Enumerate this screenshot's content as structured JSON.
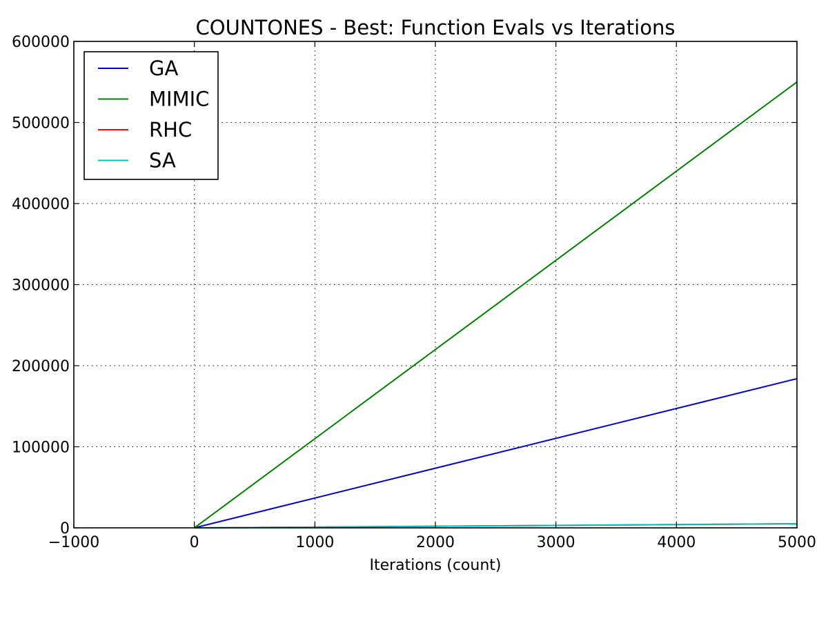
{
  "chart_data": {
    "type": "line",
    "title": "COUNTONES - Best: Function Evals vs Iterations",
    "xlabel": "Iterations (count)",
    "ylabel": "",
    "xlim": [
      -1000,
      5000
    ],
    "ylim": [
      0,
      600000
    ],
    "xticks": [
      -1000,
      0,
      1000,
      2000,
      3000,
      4000,
      5000
    ],
    "xtick_labels": [
      "−1000",
      "0",
      "1000",
      "2000",
      "3000",
      "4000",
      "5000"
    ],
    "yticks": [
      0,
      100000,
      200000,
      300000,
      400000,
      500000,
      600000
    ],
    "ytick_labels": [
      "0",
      "100000",
      "200000",
      "300000",
      "400000",
      "500000",
      "600000"
    ],
    "grid": true,
    "legend_position": "top-left",
    "series": [
      {
        "name": "GA",
        "color": "#0000cc",
        "x": [
          0,
          5000
        ],
        "values": [
          0,
          184000
        ]
      },
      {
        "name": "MIMIC",
        "color": "#007f00",
        "x": [
          0,
          5000
        ],
        "values": [
          0,
          550000
        ]
      },
      {
        "name": "RHC",
        "color": "#ff0000",
        "x": [
          0,
          5000
        ],
        "values": [
          0,
          5000
        ]
      },
      {
        "name": "SA",
        "color": "#00bfbf",
        "x": [
          0,
          5000
        ],
        "values": [
          0,
          5000
        ]
      }
    ]
  }
}
